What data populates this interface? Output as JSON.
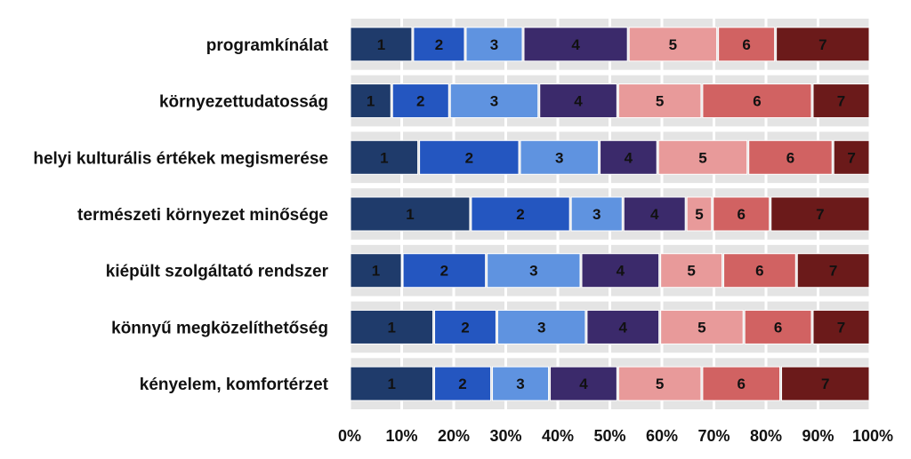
{
  "chart_data": {
    "type": "bar",
    "orientation": "horizontal",
    "stacked": "100%",
    "categories": [
      "programkínálat",
      "környezettudatosság",
      "helyi kulturális értékek megismerése",
      "természeti környezet minősége",
      "kiépült szolgáltató rendszer",
      "könnyű megközelíthetőség",
      "kényelem, komfortérzet"
    ],
    "series": [
      {
        "label": "1",
        "color": "#1f3b6b",
        "values": [
          12,
          8,
          13,
          23,
          10,
          16,
          16
        ]
      },
      {
        "label": "2",
        "color": "#2456c0",
        "values": [
          10,
          11,
          19,
          19,
          16,
          12,
          11
        ]
      },
      {
        "label": "3",
        "color": "#5f93e0",
        "values": [
          11,
          17,
          15,
          10,
          18,
          17,
          11
        ]
      },
      {
        "label": "4",
        "color": "#3b2a6b",
        "values": [
          20,
          15,
          11,
          12,
          15,
          14,
          13
        ]
      },
      {
        "label": "5",
        "color": "#e89a9a",
        "values": [
          17,
          16,
          17,
          5,
          12,
          16,
          16
        ]
      },
      {
        "label": "6",
        "color": "#d16262",
        "values": [
          11,
          21,
          16,
          11,
          14,
          13,
          15
        ]
      },
      {
        "label": "7",
        "color": "#6b1a1a",
        "values": [
          18,
          11,
          7,
          19,
          14,
          11,
          17
        ]
      }
    ],
    "x_ticks": [
      "0%",
      "10%",
      "20%",
      "30%",
      "40%",
      "50%",
      "60%",
      "70%",
      "80%",
      "90%",
      "100%"
    ],
    "xlim": [
      0,
      100
    ],
    "grid": "vertical, striped background",
    "legend": "none"
  }
}
